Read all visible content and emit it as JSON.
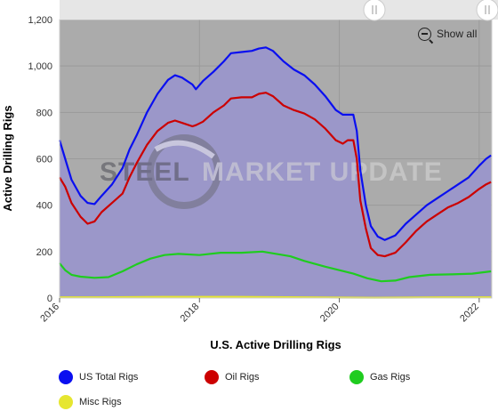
{
  "zoom_button_label": "Show all",
  "watermark": {
    "left": "STEEL",
    "right": "MARKET UPDATE"
  },
  "colors": {
    "plot_bg": "#ababab",
    "area": "#9b97c9",
    "us_total": "#0a0ff0",
    "oil": "#cc0000",
    "gas": "#1fcc1f",
    "misc": "#e6e630",
    "scrollbar": "#e6e6e6"
  },
  "chart_data": {
    "type": "area",
    "xlabel": "U.S. Active Drilling Rigs",
    "ylabel": "Active Drilling Rigs",
    "xlim": [
      2016.0,
      2022.18
    ],
    "ylim": [
      0,
      1200
    ],
    "x_ticks": [
      "2016",
      "2018",
      "2020",
      "2022"
    ],
    "y_ticks": [
      "0",
      "200",
      "400",
      "600",
      "800",
      "1,000",
      "1,200"
    ],
    "grid": true,
    "legend_position": "bottom",
    "series": [
      {
        "name": "US Total Rigs",
        "points": [
          [
            2016.0,
            680
          ],
          [
            2016.08,
            600
          ],
          [
            2016.17,
            510
          ],
          [
            2016.3,
            440
          ],
          [
            2016.4,
            410
          ],
          [
            2016.5,
            405
          ],
          [
            2016.6,
            440
          ],
          [
            2016.75,
            490
          ],
          [
            2016.9,
            560
          ],
          [
            2017.0,
            640
          ],
          [
            2017.1,
            700
          ],
          [
            2017.25,
            800
          ],
          [
            2017.4,
            880
          ],
          [
            2017.55,
            940
          ],
          [
            2017.65,
            960
          ],
          [
            2017.75,
            950
          ],
          [
            2017.9,
            920
          ],
          [
            2017.95,
            900
          ],
          [
            2018.05,
            935
          ],
          [
            2018.2,
            975
          ],
          [
            2018.35,
            1020
          ],
          [
            2018.45,
            1055
          ],
          [
            2018.6,
            1060
          ],
          [
            2018.75,
            1065
          ],
          [
            2018.85,
            1075
          ],
          [
            2018.95,
            1080
          ],
          [
            2019.05,
            1065
          ],
          [
            2019.2,
            1020
          ],
          [
            2019.35,
            985
          ],
          [
            2019.5,
            960
          ],
          [
            2019.65,
            920
          ],
          [
            2019.8,
            870
          ],
          [
            2019.95,
            810
          ],
          [
            2020.05,
            790
          ],
          [
            2020.12,
            790
          ],
          [
            2020.2,
            790
          ],
          [
            2020.25,
            720
          ],
          [
            2020.3,
            550
          ],
          [
            2020.38,
            400
          ],
          [
            2020.45,
            310
          ],
          [
            2020.55,
            265
          ],
          [
            2020.65,
            250
          ],
          [
            2020.8,
            270
          ],
          [
            2020.95,
            320
          ],
          [
            2021.1,
            360
          ],
          [
            2021.25,
            400
          ],
          [
            2021.4,
            430
          ],
          [
            2021.55,
            460
          ],
          [
            2021.7,
            490
          ],
          [
            2021.85,
            520
          ],
          [
            2022.0,
            570
          ],
          [
            2022.1,
            600
          ],
          [
            2022.17,
            615
          ]
        ]
      },
      {
        "name": "Oil Rigs",
        "points": [
          [
            2016.0,
            520
          ],
          [
            2016.08,
            480
          ],
          [
            2016.17,
            410
          ],
          [
            2016.3,
            350
          ],
          [
            2016.4,
            320
          ],
          [
            2016.5,
            330
          ],
          [
            2016.6,
            370
          ],
          [
            2016.75,
            410
          ],
          [
            2016.9,
            450
          ],
          [
            2017.0,
            520
          ],
          [
            2017.1,
            580
          ],
          [
            2017.25,
            660
          ],
          [
            2017.4,
            720
          ],
          [
            2017.55,
            755
          ],
          [
            2017.65,
            765
          ],
          [
            2017.75,
            755
          ],
          [
            2017.9,
            740
          ],
          [
            2017.95,
            745
          ],
          [
            2018.05,
            760
          ],
          [
            2018.2,
            800
          ],
          [
            2018.35,
            830
          ],
          [
            2018.45,
            860
          ],
          [
            2018.6,
            865
          ],
          [
            2018.75,
            865
          ],
          [
            2018.85,
            880
          ],
          [
            2018.95,
            885
          ],
          [
            2019.05,
            870
          ],
          [
            2019.2,
            830
          ],
          [
            2019.35,
            810
          ],
          [
            2019.5,
            795
          ],
          [
            2019.65,
            770
          ],
          [
            2019.8,
            730
          ],
          [
            2019.95,
            680
          ],
          [
            2020.05,
            665
          ],
          [
            2020.12,
            680
          ],
          [
            2020.2,
            680
          ],
          [
            2020.25,
            600
          ],
          [
            2020.3,
            420
          ],
          [
            2020.38,
            300
          ],
          [
            2020.45,
            215
          ],
          [
            2020.55,
            185
          ],
          [
            2020.65,
            180
          ],
          [
            2020.8,
            195
          ],
          [
            2020.95,
            240
          ],
          [
            2021.1,
            290
          ],
          [
            2021.25,
            330
          ],
          [
            2021.4,
            360
          ],
          [
            2021.55,
            390
          ],
          [
            2021.7,
            410
          ],
          [
            2021.85,
            435
          ],
          [
            2022.0,
            470
          ],
          [
            2022.1,
            490
          ],
          [
            2022.17,
            500
          ]
        ]
      },
      {
        "name": "Gas Rigs",
        "points": [
          [
            2016.0,
            150
          ],
          [
            2016.08,
            120
          ],
          [
            2016.17,
            100
          ],
          [
            2016.3,
            92
          ],
          [
            2016.5,
            87
          ],
          [
            2016.7,
            90
          ],
          [
            2016.9,
            115
          ],
          [
            2017.1,
            145
          ],
          [
            2017.3,
            170
          ],
          [
            2017.5,
            185
          ],
          [
            2017.7,
            190
          ],
          [
            2018.0,
            185
          ],
          [
            2018.3,
            195
          ],
          [
            2018.6,
            195
          ],
          [
            2018.9,
            200
          ],
          [
            2019.1,
            190
          ],
          [
            2019.3,
            180
          ],
          [
            2019.5,
            160
          ],
          [
            2019.8,
            135
          ],
          [
            2020.0,
            120
          ],
          [
            2020.2,
            105
          ],
          [
            2020.4,
            85
          ],
          [
            2020.6,
            72
          ],
          [
            2020.8,
            75
          ],
          [
            2021.0,
            90
          ],
          [
            2021.3,
            100
          ],
          [
            2021.6,
            102
          ],
          [
            2021.9,
            105
          ],
          [
            2022.17,
            115
          ]
        ]
      },
      {
        "name": "Misc Rigs",
        "points": [
          [
            2016.0,
            3
          ],
          [
            2016.5,
            3
          ],
          [
            2017.0,
            4
          ],
          [
            2017.5,
            5
          ],
          [
            2018.0,
            5
          ],
          [
            2018.5,
            5
          ],
          [
            2019.0,
            4
          ],
          [
            2019.5,
            3
          ],
          [
            2020.0,
            2
          ],
          [
            2020.5,
            1
          ],
          [
            2021.0,
            2
          ],
          [
            2021.5,
            3
          ],
          [
            2022.17,
            3
          ]
        ]
      }
    ]
  }
}
